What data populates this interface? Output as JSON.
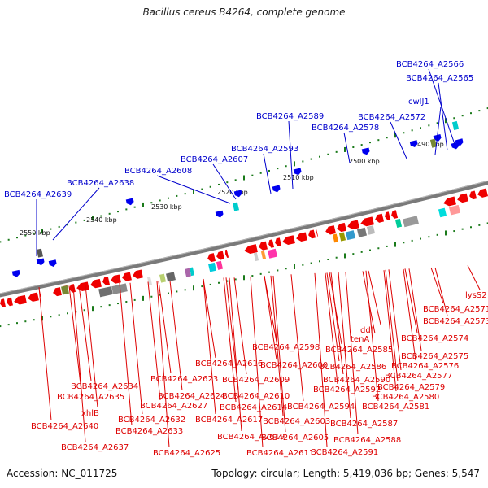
{
  "title": "Bacillus cereus B4264, complete genome",
  "footer": {
    "accession": "Accession: NC_011725",
    "summary": "Topology: circular; Length: 5,419,036 bp; Genes: 5,547"
  },
  "colors": {
    "forward_label": "#0000cc",
    "reverse_label": "#dd0000",
    "forward_gene": "#0000ee",
    "reverse_gene": "#ee0000",
    "backbone": "#777777",
    "tick": "#1a7a1a"
  },
  "scale_labels": [
    "2550 kbp",
    "2540 kbp",
    "2530 kbp",
    "2520 kbp",
    "2510 kbp",
    "2500 kbp",
    "2490 kbp"
  ],
  "forward_labels": [
    "BCB4264_A2566",
    "BCB4264_A2565",
    "cwlJ1",
    "BCB4264_A2572",
    "BCB4264_A2589",
    "BCB4264_A2578",
    "BCB4264_A2593",
    "BCB4264_A2607",
    "BCB4264_A2608",
    "BCB4264_A2638",
    "BCB4264_A2639"
  ],
  "reverse_labels": [
    "lysS2",
    "BCB4264_A2571",
    "BCB4264_A2573",
    "BCB4264_A2574",
    "BCB4264_A2575",
    "BCB4264_A2576",
    "BCB4264_A2577",
    "BCB4264_A2579",
    "BCB4264_A2580",
    "BCB4264_A2581",
    "ddl",
    "tenA",
    "BCB4264_A2585",
    "BCB4264_A2586",
    "BCB4264_A2598",
    "BCB4264_A2600",
    "BCB4264_A2590",
    "BCB4264_A2592",
    "BCB4264_A2594",
    "BCB4264_A2587",
    "BCB4264_A2588",
    "BCB4264_A2591",
    "BCB4264_A2616",
    "BCB4264_A2609",
    "BCB4264_A2610",
    "BCB4264_A2603",
    "BCB4264_A2605",
    "BCB4264_A2611",
    "BCB4264_A2623",
    "BCB4264_A2624",
    "BCB4264_A2614",
    "BCB4264_A2617",
    "BCB4264_A2619",
    "BCB4264_A2625",
    "BCB4264_A2627",
    "BCB4264_A2632",
    "BCB4264_A2633",
    "BCB4264_A2634",
    "BCB4264_A2635",
    "xhlB",
    "BCB4264_A2640",
    "BCB4264_A2637"
  ]
}
